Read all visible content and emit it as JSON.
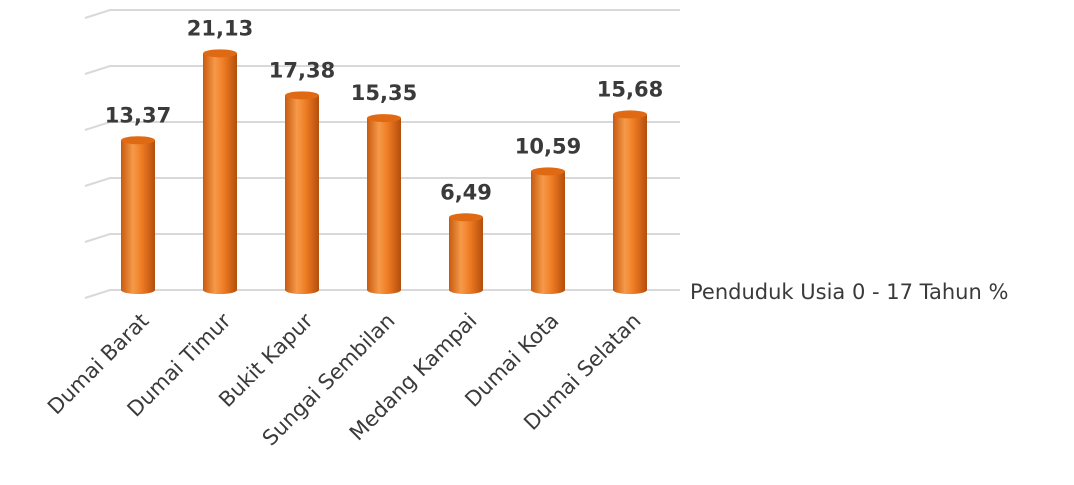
{
  "chart_data": {
    "type": "bar",
    "categories": [
      "Dumai Barat",
      "Dumai Timur",
      "Bukit Kapur",
      "Sungai Sembilan",
      "Medang Kampai",
      "Dumai Kota",
      "Dumai Selatan"
    ],
    "series": [
      {
        "name": "Penduduk Usia 0 - 17 Tahun %",
        "values": [
          13.37,
          21.13,
          17.38,
          15.35,
          6.49,
          10.59,
          15.68
        ],
        "labels": [
          "13,37",
          "21,13",
          "17,38",
          "15,35",
          "6,49",
          "10,59",
          "15,68"
        ],
        "color": "#f07d24"
      }
    ],
    "ylim": [
      0,
      25
    ],
    "grid": true,
    "legend": "right",
    "style": "3d-cylinder"
  }
}
